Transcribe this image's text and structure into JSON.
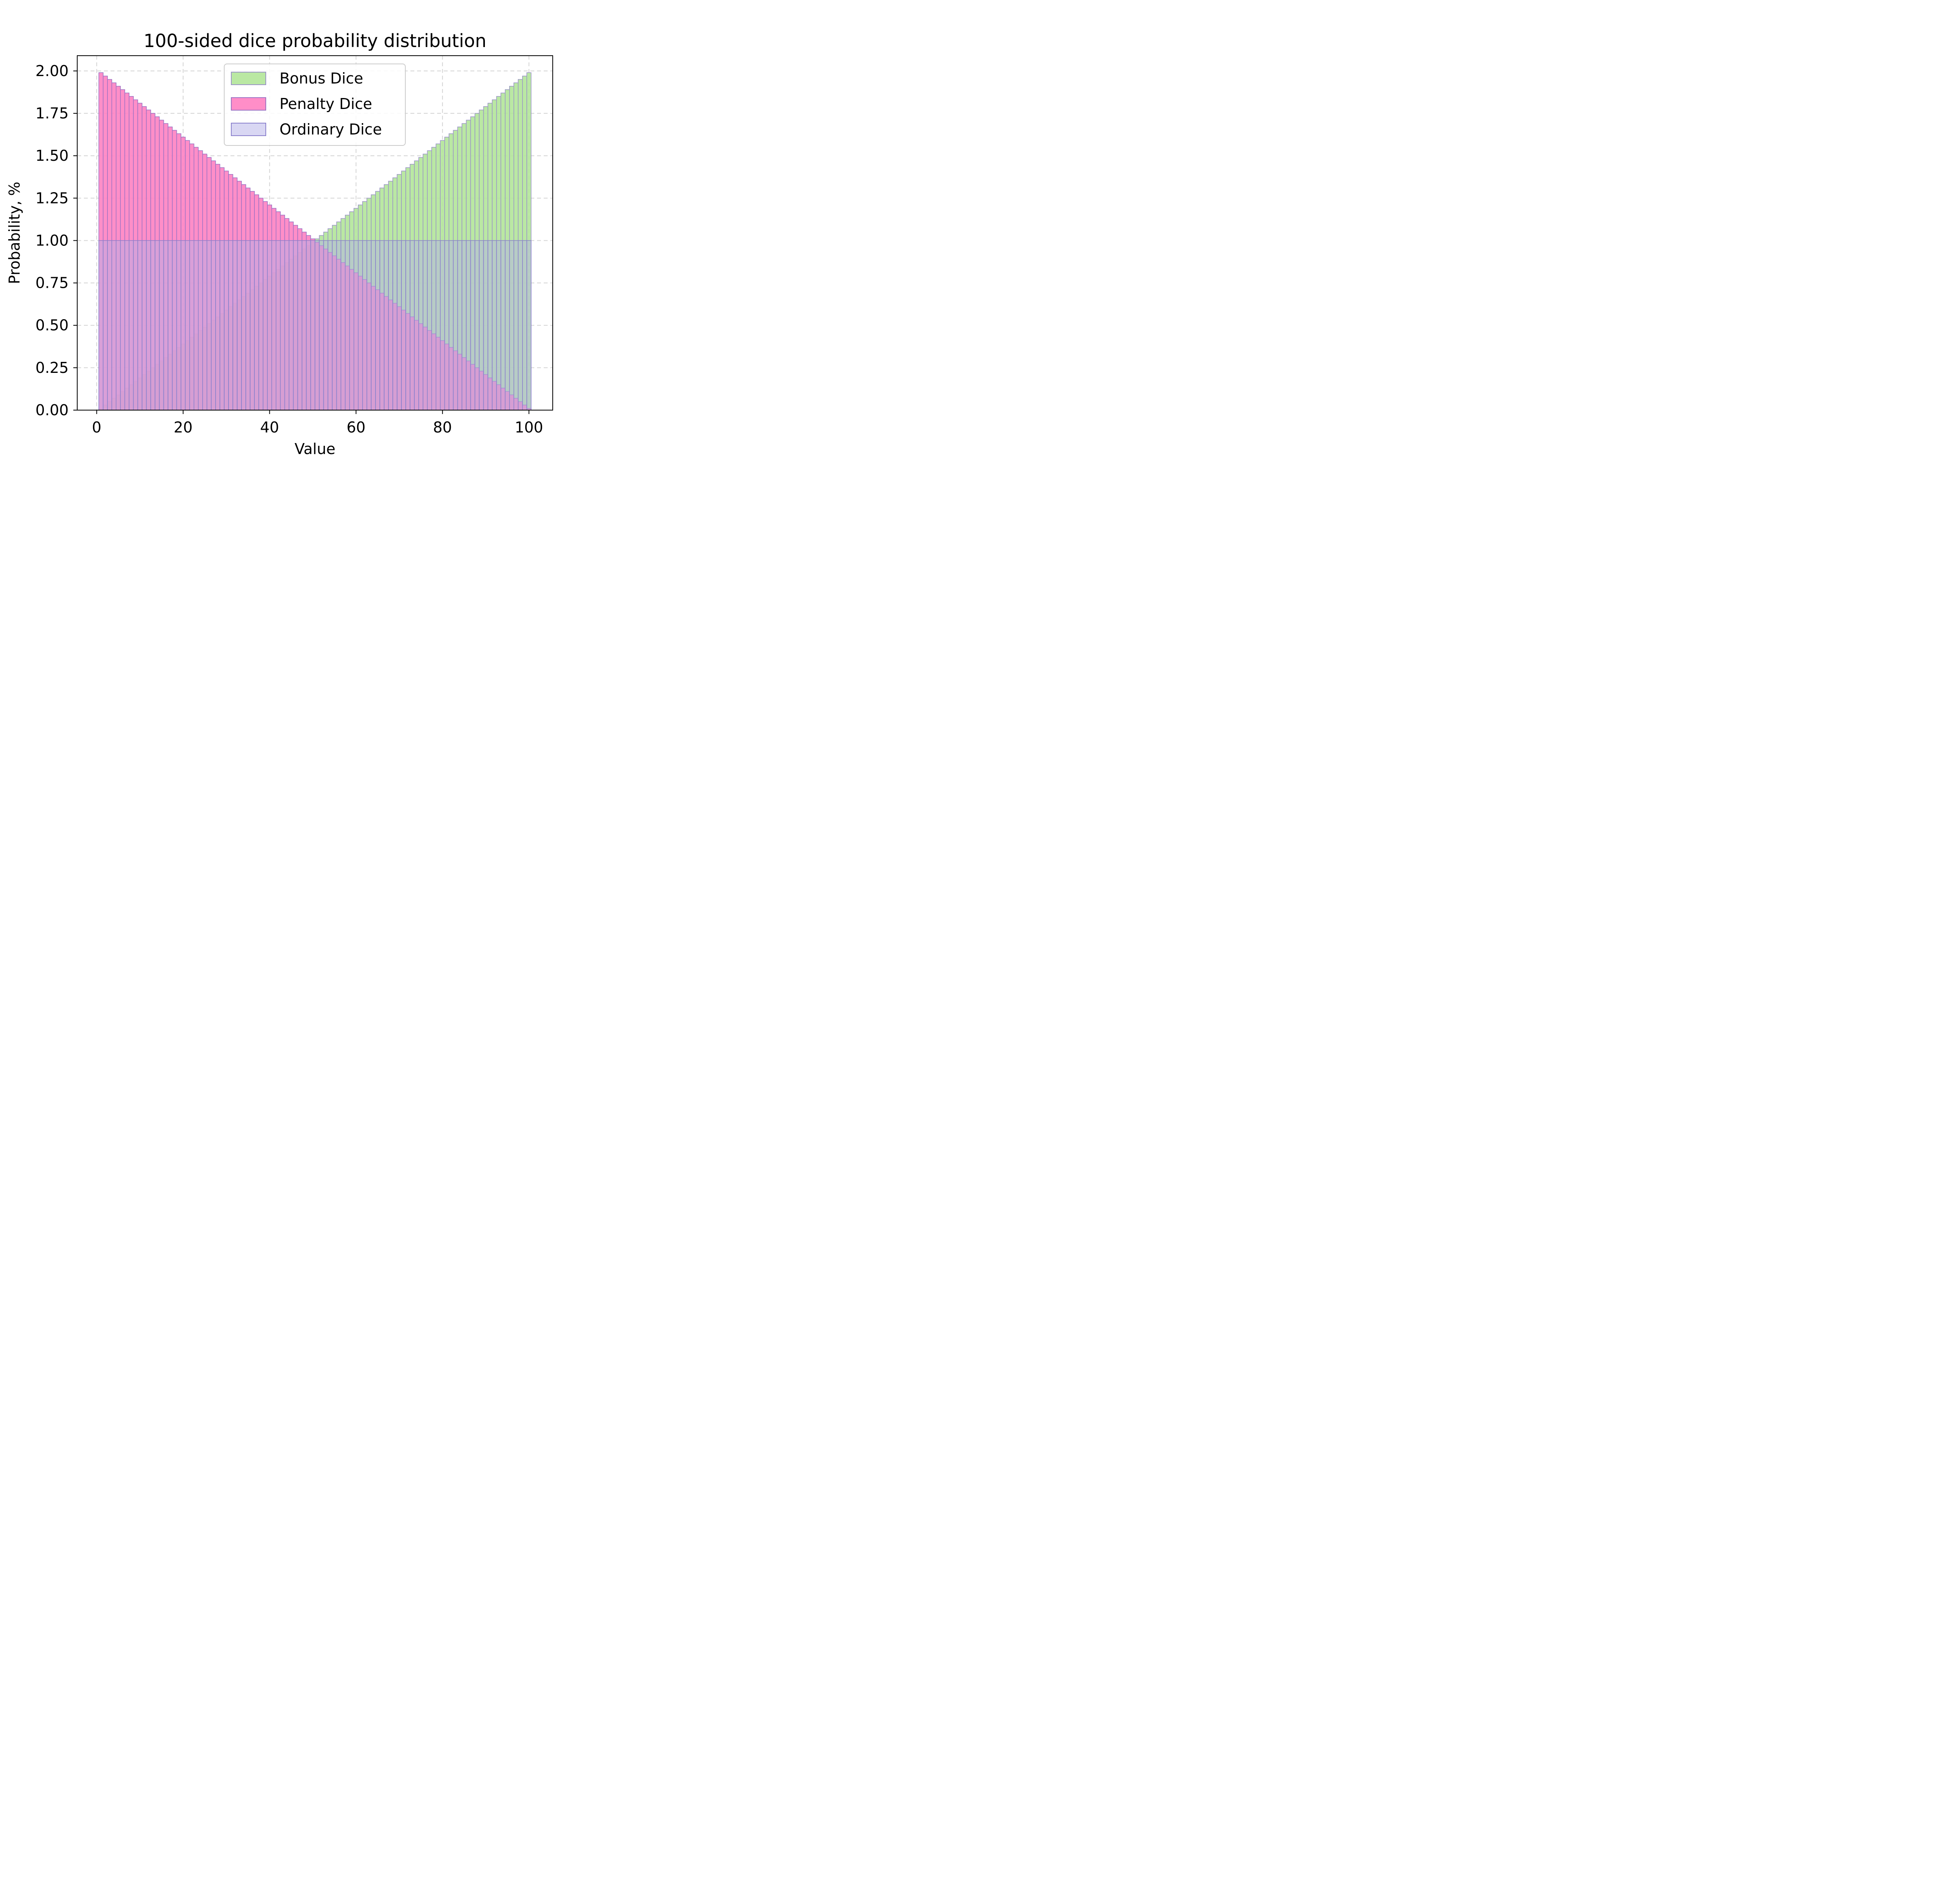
{
  "chart_data": {
    "type": "bar",
    "title": "100-sided dice probability distribution",
    "xlabel": "Value",
    "ylabel": "Probability, %",
    "xlim": [
      -4.5,
      105.5
    ],
    "ylim": [
      0,
      2.09
    ],
    "xticks": [
      0,
      20,
      40,
      60,
      80,
      100
    ],
    "yticks": [
      0,
      0.25,
      0.5,
      0.75,
      1.0,
      1.25,
      1.5,
      1.75,
      2.0
    ],
    "xtick_labels": [
      "0",
      "20",
      "40",
      "60",
      "80",
      "100"
    ],
    "ytick_labels": [
      "0.00",
      "0.25",
      "0.50",
      "0.75",
      "1.00",
      "1.25",
      "1.50",
      "1.75",
      "2.00"
    ],
    "grid": true,
    "legend_position": "top-center",
    "x_start": 1,
    "x_end": 100,
    "series": [
      {
        "name": "Bonus Dice",
        "color": "#b3e699",
        "edge_color": "#9b94c7",
        "values": [
          0.01,
          0.03,
          0.05,
          0.07,
          0.09,
          0.11,
          0.13,
          0.15,
          0.17,
          0.19,
          0.21,
          0.23,
          0.25,
          0.27,
          0.29,
          0.31,
          0.33,
          0.35,
          0.37,
          0.39,
          0.41,
          0.43,
          0.45,
          0.47,
          0.49,
          0.51,
          0.53,
          0.55,
          0.57,
          0.59,
          0.61,
          0.63,
          0.65,
          0.67,
          0.69,
          0.71,
          0.73,
          0.75,
          0.77,
          0.79,
          0.81,
          0.83,
          0.85,
          0.87,
          0.89,
          0.91,
          0.93,
          0.95,
          0.97,
          0.99,
          1.01,
          1.03,
          1.05,
          1.07,
          1.09,
          1.11,
          1.13,
          1.15,
          1.17,
          1.19,
          1.21,
          1.23,
          1.25,
          1.27,
          1.29,
          1.31,
          1.33,
          1.35,
          1.37,
          1.39,
          1.41,
          1.43,
          1.45,
          1.47,
          1.49,
          1.51,
          1.53,
          1.55,
          1.57,
          1.59,
          1.61,
          1.63,
          1.65,
          1.67,
          1.69,
          1.71,
          1.73,
          1.75,
          1.77,
          1.79,
          1.81,
          1.83,
          1.85,
          1.87,
          1.89,
          1.91,
          1.93,
          1.95,
          1.97,
          1.99
        ]
      },
      {
        "name": "Penalty Dice",
        "color": "#ff82c2",
        "edge_color": "#9b72c4",
        "values": [
          1.99,
          1.97,
          1.95,
          1.93,
          1.91,
          1.89,
          1.87,
          1.85,
          1.83,
          1.81,
          1.79,
          1.77,
          1.75,
          1.73,
          1.71,
          1.69,
          1.67,
          1.65,
          1.63,
          1.61,
          1.59,
          1.57,
          1.55,
          1.53,
          1.51,
          1.49,
          1.47,
          1.45,
          1.43,
          1.41,
          1.39,
          1.37,
          1.35,
          1.33,
          1.31,
          1.29,
          1.27,
          1.25,
          1.23,
          1.21,
          1.19,
          1.17,
          1.15,
          1.13,
          1.11,
          1.09,
          1.07,
          1.05,
          1.03,
          1.01,
          0.99,
          0.97,
          0.95,
          0.93,
          0.91,
          0.89,
          0.87,
          0.85,
          0.83,
          0.81,
          0.79,
          0.77,
          0.75,
          0.73,
          0.71,
          0.69,
          0.67,
          0.65,
          0.63,
          0.61,
          0.59,
          0.57,
          0.55,
          0.53,
          0.51,
          0.49,
          0.47,
          0.45,
          0.43,
          0.41,
          0.39,
          0.37,
          0.35,
          0.33,
          0.31,
          0.29,
          0.27,
          0.25,
          0.23,
          0.21,
          0.19,
          0.17,
          0.15,
          0.13,
          0.11,
          0.09,
          0.07,
          0.05,
          0.03,
          0.01
        ]
      },
      {
        "name": "Ordinary Dice",
        "color": "#b4b0e8",
        "edge_color": "#8a80cc",
        "values": [
          1.0,
          1.0,
          1.0,
          1.0,
          1.0,
          1.0,
          1.0,
          1.0,
          1.0,
          1.0,
          1.0,
          1.0,
          1.0,
          1.0,
          1.0,
          1.0,
          1.0,
          1.0,
          1.0,
          1.0,
          1.0,
          1.0,
          1.0,
          1.0,
          1.0,
          1.0,
          1.0,
          1.0,
          1.0,
          1.0,
          1.0,
          1.0,
          1.0,
          1.0,
          1.0,
          1.0,
          1.0,
          1.0,
          1.0,
          1.0,
          1.0,
          1.0,
          1.0,
          1.0,
          1.0,
          1.0,
          1.0,
          1.0,
          1.0,
          1.0,
          1.0,
          1.0,
          1.0,
          1.0,
          1.0,
          1.0,
          1.0,
          1.0,
          1.0,
          1.0,
          1.0,
          1.0,
          1.0,
          1.0,
          1.0,
          1.0,
          1.0,
          1.0,
          1.0,
          1.0,
          1.0,
          1.0,
          1.0,
          1.0,
          1.0,
          1.0,
          1.0,
          1.0,
          1.0,
          1.0,
          1.0,
          1.0,
          1.0,
          1.0,
          1.0,
          1.0,
          1.0,
          1.0,
          1.0,
          1.0,
          1.0,
          1.0,
          1.0,
          1.0,
          1.0,
          1.0,
          1.0,
          1.0,
          1.0,
          1.0
        ]
      }
    ]
  }
}
